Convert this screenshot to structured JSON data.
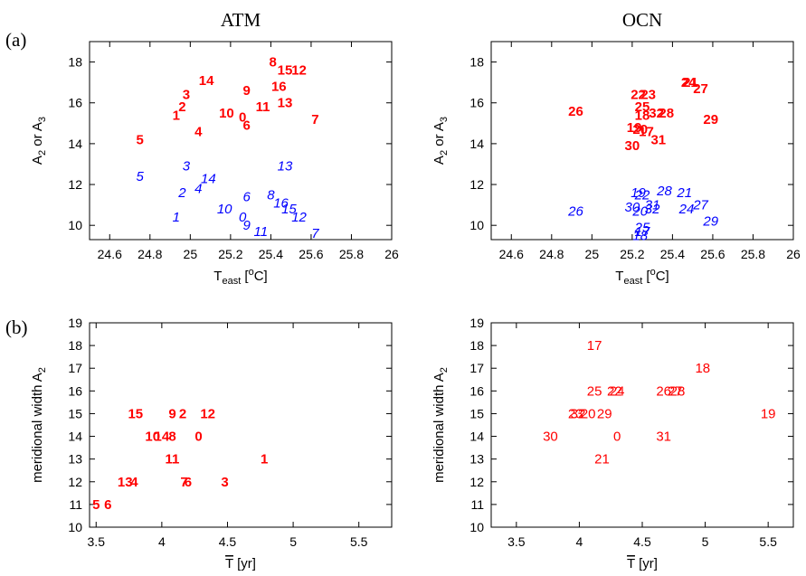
{
  "colors": {
    "red": "#ff0000",
    "blue": "#0000ff",
    "axis": "#000000"
  },
  "panel_labels": {
    "a": "(a)",
    "b": "(b)"
  },
  "chart_data": [
    {
      "id": "atm_a",
      "type": "scatter",
      "title": "ATM",
      "xlabel": {
        "main": "T",
        "sub": "east",
        "rest": " [",
        "sup": "o",
        "end": "C]"
      },
      "ylabel": {
        "main": "A",
        "sub": "2",
        "mid": " or A",
        "sub2": "3"
      },
      "xlim": [
        24.5,
        26.0
      ],
      "ylim": [
        9.3,
        19.0
      ],
      "xticks": [
        "24.6",
        "24.8",
        "25",
        "25.2",
        "25.4",
        "25.6",
        "25.8",
        "26"
      ],
      "xtick_values": [
        24.6,
        24.8,
        25.0,
        25.2,
        25.4,
        25.6,
        25.8,
        26.0
      ],
      "yticks": [
        "10",
        "12",
        "14",
        "16",
        "18"
      ],
      "ytick_values": [
        10,
        12,
        14,
        16,
        18
      ],
      "series": [
        {
          "color": "#ff0000",
          "style": "bold",
          "points": [
            {
              "label": "1",
              "x": 24.93,
              "y": 15.4
            },
            {
              "label": "2",
              "x": 24.96,
              "y": 15.8
            },
            {
              "label": "3",
              "x": 24.98,
              "y": 16.4
            },
            {
              "label": "4",
              "x": 25.04,
              "y": 14.6
            },
            {
              "label": "5",
              "x": 24.75,
              "y": 14.2
            },
            {
              "label": "6",
              "x": 25.28,
              "y": 14.9
            },
            {
              "label": "7",
              "x": 25.62,
              "y": 15.2
            },
            {
              "label": "8",
              "x": 25.41,
              "y": 18.0
            },
            {
              "label": "9",
              "x": 25.28,
              "y": 16.6
            },
            {
              "label": "10",
              "x": 25.18,
              "y": 15.5
            },
            {
              "label": "11",
              "x": 25.36,
              "y": 15.8
            },
            {
              "label": "12",
              "x": 25.54,
              "y": 17.6
            },
            {
              "label": "13",
              "x": 25.47,
              "y": 16.0
            },
            {
              "label": "14",
              "x": 25.08,
              "y": 17.1
            },
            {
              "label": "15",
              "x": 25.47,
              "y": 17.6
            },
            {
              "label": "16",
              "x": 25.44,
              "y": 16.8
            },
            {
              "label": "0",
              "x": 25.26,
              "y": 15.3
            }
          ]
        },
        {
          "color": "#0000ff",
          "style": "italic",
          "points": [
            {
              "label": "1",
              "x": 24.93,
              "y": 10.4
            },
            {
              "label": "2",
              "x": 24.96,
              "y": 11.6
            },
            {
              "label": "3",
              "x": 24.98,
              "y": 12.9
            },
            {
              "label": "4",
              "x": 25.04,
              "y": 11.8
            },
            {
              "label": "5",
              "x": 24.75,
              "y": 12.4
            },
            {
              "label": "6",
              "x": 25.28,
              "y": 11.4
            },
            {
              "label": "7",
              "x": 25.62,
              "y": 9.6
            },
            {
              "label": "8",
              "x": 25.4,
              "y": 11.5
            },
            {
              "label": "9",
              "x": 25.28,
              "y": 10.0
            },
            {
              "label": "10",
              "x": 25.17,
              "y": 10.8
            },
            {
              "label": "11",
              "x": 25.35,
              "y": 9.7
            },
            {
              "label": "12",
              "x": 25.54,
              "y": 10.4
            },
            {
              "label": "13",
              "x": 25.47,
              "y": 12.9
            },
            {
              "label": "14",
              "x": 25.09,
              "y": 12.3
            },
            {
              "label": "15",
              "x": 25.49,
              "y": 10.8
            },
            {
              "label": "16",
              "x": 25.45,
              "y": 11.1
            },
            {
              "label": "0",
              "x": 25.26,
              "y": 10.4
            }
          ]
        }
      ]
    },
    {
      "id": "ocn_a",
      "type": "scatter",
      "title": "OCN",
      "xlabel": {
        "main": "T",
        "sub": "east",
        "rest": " [",
        "sup": "o",
        "end": "C]"
      },
      "ylabel": {
        "main": "A",
        "sub": "2",
        "mid": " or A",
        "sub2": "3"
      },
      "xlim": [
        24.5,
        26.0
      ],
      "ylim": [
        9.3,
        19.0
      ],
      "xticks": [
        "24.6",
        "24.8",
        "25",
        "25.2",
        "25.4",
        "25.6",
        "25.8",
        "26"
      ],
      "xtick_values": [
        24.6,
        24.8,
        25.0,
        25.2,
        25.4,
        25.6,
        25.8,
        26.0
      ],
      "yticks": [
        "10",
        "12",
        "14",
        "16",
        "18"
      ],
      "ytick_values": [
        10,
        12,
        14,
        16,
        18
      ],
      "series": [
        {
          "color": "#ff0000",
          "style": "bold",
          "points": [
            {
              "label": "26",
              "x": 24.92,
              "y": 15.6
            },
            {
              "label": "22",
              "x": 25.23,
              "y": 16.4
            },
            {
              "label": "23",
              "x": 25.28,
              "y": 16.4
            },
            {
              "label": "25",
              "x": 25.25,
              "y": 15.8
            },
            {
              "label": "32",
              "x": 25.32,
              "y": 15.5
            },
            {
              "label": "28",
              "x": 25.37,
              "y": 15.5
            },
            {
              "label": "18",
              "x": 25.25,
              "y": 15.4
            },
            {
              "label": "19",
              "x": 25.21,
              "y": 14.8
            },
            {
              "label": "20",
              "x": 25.24,
              "y": 14.7
            },
            {
              "label": "17",
              "x": 25.27,
              "y": 14.6
            },
            {
              "label": "30",
              "x": 25.2,
              "y": 13.9
            },
            {
              "label": "31",
              "x": 25.33,
              "y": 14.2
            },
            {
              "label": "24",
              "x": 25.48,
              "y": 17.0
            },
            {
              "label": "21",
              "x": 25.49,
              "y": 17.0
            },
            {
              "label": "27",
              "x": 25.54,
              "y": 16.7
            },
            {
              "label": "29",
              "x": 25.59,
              "y": 15.2
            }
          ]
        },
        {
          "color": "#0000ff",
          "style": "italic",
          "points": [
            {
              "label": "26",
              "x": 24.92,
              "y": 10.7
            },
            {
              "label": "19",
              "x": 25.23,
              "y": 11.6
            },
            {
              "label": "22",
              "x": 25.25,
              "y": 11.5
            },
            {
              "label": "28",
              "x": 25.36,
              "y": 11.7
            },
            {
              "label": "21",
              "x": 25.46,
              "y": 11.6
            },
            {
              "label": "30",
              "x": 25.2,
              "y": 10.9
            },
            {
              "label": "20",
              "x": 25.24,
              "y": 10.7
            },
            {
              "label": "32",
              "x": 25.3,
              "y": 10.8
            },
            {
              "label": "31",
              "x": 25.3,
              "y": 11.0
            },
            {
              "label": "24",
              "x": 25.47,
              "y": 10.8
            },
            {
              "label": "27",
              "x": 25.54,
              "y": 11.0
            },
            {
              "label": "29",
              "x": 25.59,
              "y": 10.2
            },
            {
              "label": "25",
              "x": 25.25,
              "y": 9.9
            },
            {
              "label": "17",
              "x": 25.25,
              "y": 9.7
            },
            {
              "label": "18",
              "x": 25.24,
              "y": 9.5
            }
          ]
        }
      ]
    },
    {
      "id": "atm_b",
      "type": "scatter",
      "title": "",
      "xlabel": {
        "main": "T",
        "overline": true,
        "rest": " [yr]"
      },
      "ylabel": {
        "main": "meridional width A",
        "sub": "2"
      },
      "xlim": [
        3.45,
        5.75
      ],
      "ylim": [
        10,
        19
      ],
      "xticks": [
        "3.5",
        "4",
        "4.5",
        "5",
        "5.5"
      ],
      "xtick_values": [
        3.5,
        4.0,
        4.5,
        5.0,
        5.5
      ],
      "yticks": [
        "10",
        "11",
        "12",
        "13",
        "14",
        "15",
        "16",
        "17",
        "18",
        "19"
      ],
      "ytick_values": [
        10,
        11,
        12,
        13,
        14,
        15,
        16,
        17,
        18,
        19
      ],
      "series": [
        {
          "color": "#ff0000",
          "style": "bold",
          "points": [
            {
              "label": "15",
              "x": 3.8,
              "y": 15
            },
            {
              "label": "9",
              "x": 4.08,
              "y": 15
            },
            {
              "label": "2",
              "x": 4.16,
              "y": 15
            },
            {
              "label": "12",
              "x": 4.35,
              "y": 15
            },
            {
              "label": "10",
              "x": 3.93,
              "y": 14
            },
            {
              "label": "14",
              "x": 4.0,
              "y": 14
            },
            {
              "label": "8",
              "x": 4.08,
              "y": 14
            },
            {
              "label": "0",
              "x": 4.28,
              "y": 14
            },
            {
              "label": "11",
              "x": 4.08,
              "y": 13
            },
            {
              "label": "1",
              "x": 4.78,
              "y": 13
            },
            {
              "label": "13",
              "x": 3.72,
              "y": 12
            },
            {
              "label": "4",
              "x": 3.79,
              "y": 12
            },
            {
              "label": "7",
              "x": 4.17,
              "y": 12
            },
            {
              "label": "6",
              "x": 4.2,
              "y": 12
            },
            {
              "label": "3",
              "x": 4.48,
              "y": 12
            },
            {
              "label": "5",
              "x": 3.5,
              "y": 11
            },
            {
              "label": "6",
              "x": 3.59,
              "y": 11
            }
          ]
        }
      ]
    },
    {
      "id": "ocn_b",
      "type": "scatter",
      "title": "",
      "xlabel": {
        "main": "T",
        "overline": true,
        "rest": " [yr]"
      },
      "ylabel": {
        "main": "meridional width A",
        "sub": "2"
      },
      "xlim": [
        3.3,
        5.7
      ],
      "ylim": [
        10,
        19
      ],
      "xticks": [
        "3.5",
        "4",
        "4.5",
        "5",
        "5.5"
      ],
      "xtick_values": [
        3.5,
        4.0,
        4.5,
        5.0,
        5.5
      ],
      "yticks": [
        "10",
        "11",
        "12",
        "13",
        "14",
        "15",
        "16",
        "17",
        "18",
        "19"
      ],
      "ytick_values": [
        10,
        11,
        12,
        13,
        14,
        15,
        16,
        17,
        18,
        19
      ],
      "series": [
        {
          "color": "#ff0000",
          "style": "normal",
          "points": [
            {
              "label": "17",
              "x": 4.12,
              "y": 18
            },
            {
              "label": "18",
              "x": 4.98,
              "y": 17
            },
            {
              "label": "25",
              "x": 4.12,
              "y": 16
            },
            {
              "label": "22",
              "x": 4.28,
              "y": 16
            },
            {
              "label": "24",
              "x": 4.3,
              "y": 16
            },
            {
              "label": "26",
              "x": 4.67,
              "y": 16
            },
            {
              "label": "27",
              "x": 4.76,
              "y": 16
            },
            {
              "label": "28",
              "x": 4.78,
              "y": 16
            },
            {
              "label": "23",
              "x": 3.97,
              "y": 15
            },
            {
              "label": "32",
              "x": 3.99,
              "y": 15
            },
            {
              "label": "20",
              "x": 4.07,
              "y": 15
            },
            {
              "label": "29",
              "x": 4.2,
              "y": 15
            },
            {
              "label": "19",
              "x": 5.5,
              "y": 15
            },
            {
              "label": "30",
              "x": 3.77,
              "y": 14
            },
            {
              "label": "0",
              "x": 4.3,
              "y": 14
            },
            {
              "label": "31",
              "x": 4.67,
              "y": 14
            },
            {
              "label": "21",
              "x": 4.18,
              "y": 13
            }
          ]
        }
      ]
    }
  ]
}
